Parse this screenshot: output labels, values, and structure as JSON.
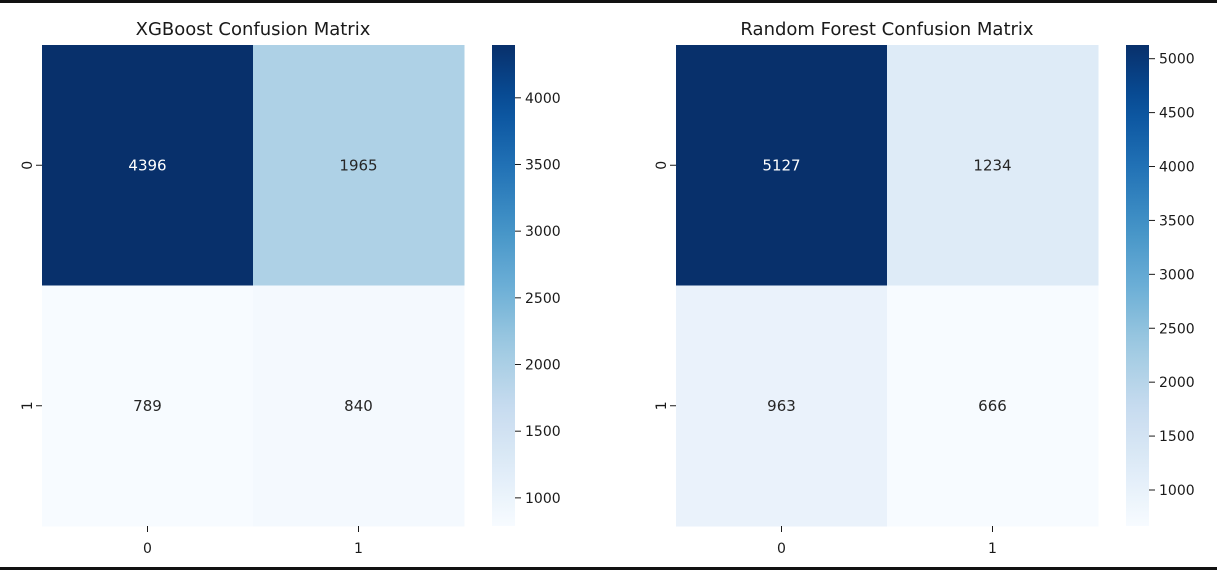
{
  "colormap": {
    "name": "Blues",
    "stops": [
      "#f7fbff",
      "#deebf7",
      "#c6dbef",
      "#9ecae1",
      "#6baed6",
      "#4292c6",
      "#2171b5",
      "#08519c",
      "#08306b"
    ]
  },
  "chart_data": [
    {
      "type": "heatmap",
      "title": "XGBoost Confusion Matrix",
      "x_categories": [
        "0",
        "1"
      ],
      "y_categories": [
        "0",
        "1"
      ],
      "values": [
        [
          4396,
          1965
        ],
        [
          789,
          840
        ]
      ],
      "vmin": 789,
      "vmax": 4396,
      "colorbar_ticks": [
        1000,
        1500,
        2000,
        2500,
        3000,
        3500,
        4000
      ],
      "grid": false
    },
    {
      "type": "heatmap",
      "title": "Random Forest Confusion Matrix",
      "x_categories": [
        "0",
        "1"
      ],
      "y_categories": [
        "0",
        "1"
      ],
      "values": [
        [
          5127,
          1234
        ],
        [
          963,
          666
        ]
      ],
      "vmin": 666,
      "vmax": 5127,
      "colorbar_ticks": [
        1000,
        1500,
        2000,
        2500,
        3000,
        3500,
        4000,
        4500,
        5000
      ],
      "grid": false
    }
  ]
}
